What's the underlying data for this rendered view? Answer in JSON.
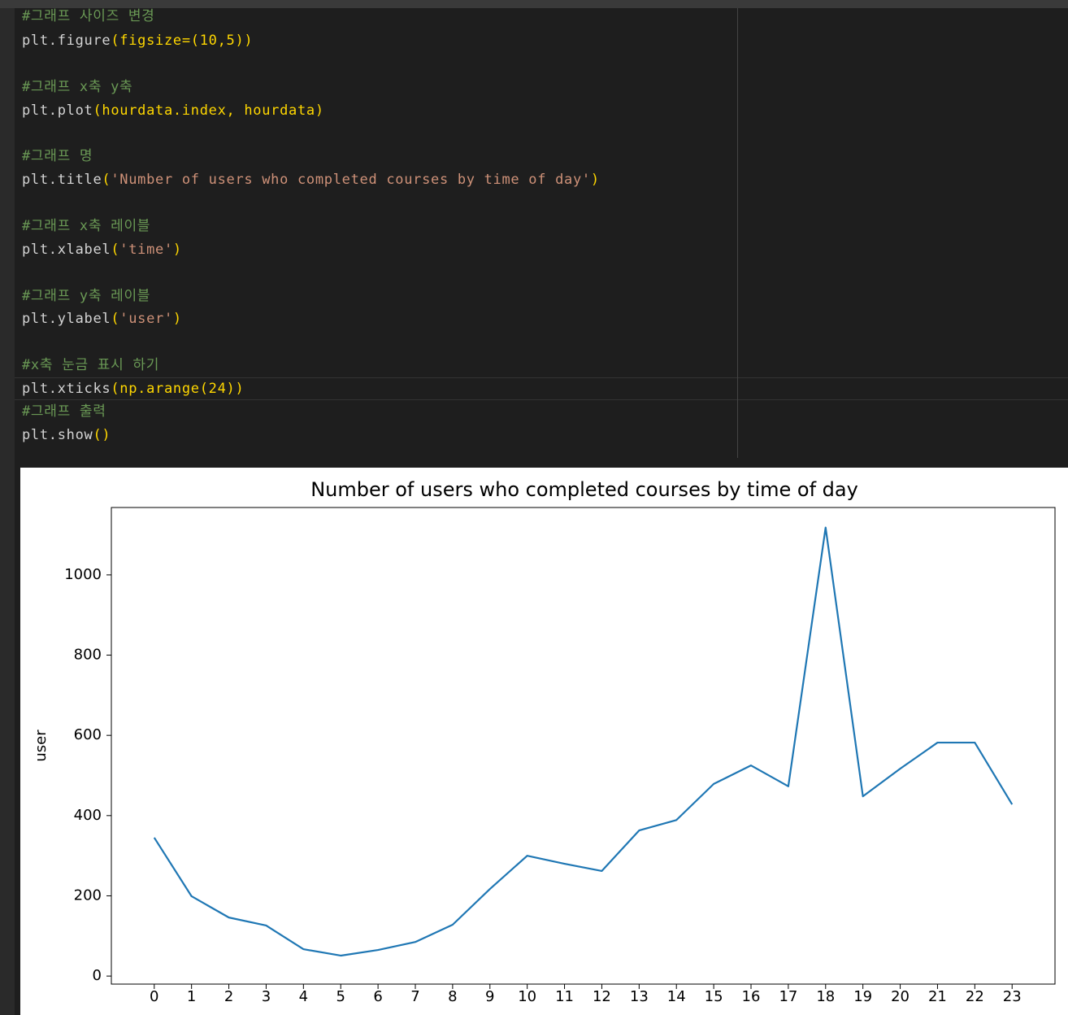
{
  "code": {
    "lines": [
      [
        "#그래프 사이즈 변경"
      ],
      [
        "plt.figure",
        "(figsize=(10,5))"
      ],
      [
        "#그래프 x축 y축"
      ],
      [
        "plt.plot",
        "(hourdata.index, hourdata)"
      ],
      [
        "#그래프 명"
      ],
      [
        "plt.title",
        "(",
        "'Number of users who completed courses by time of day'",
        ")"
      ],
      [
        "#그래프 x축 레이블"
      ],
      [
        "plt.xlabel",
        "(",
        "'time'",
        ")"
      ],
      [
        "#그래프 y축 레이블"
      ],
      [
        "plt.ylabel",
        "(",
        "'user'",
        ")"
      ],
      [
        "#x축 눈금 표시 하기"
      ],
      [
        "plt.xticks",
        "(np.arange(24))"
      ],
      [
        "#그래프 출력"
      ],
      [
        "plt.show",
        "()"
      ]
    ]
  },
  "chart_data": {
    "type": "line",
    "title": "Number of users who completed courses by time of day",
    "ylabel": "user",
    "color": "#1f77b4",
    "x": [
      0,
      1,
      2,
      3,
      4,
      5,
      6,
      7,
      8,
      9,
      10,
      11,
      12,
      13,
      14,
      15,
      16,
      17,
      18,
      19,
      20,
      21,
      22,
      23
    ],
    "values": [
      345,
      199,
      146,
      126,
      67,
      51,
      65,
      85,
      128,
      217,
      300,
      280,
      262,
      363,
      389,
      479,
      525,
      473,
      1118,
      448,
      517,
      582,
      582,
      428
    ],
    "xlim": [
      -1.15,
      24.15
    ],
    "xticks": [
      0,
      1,
      2,
      3,
      4,
      5,
      6,
      7,
      8,
      9,
      10,
      11,
      12,
      13,
      14,
      15,
      16,
      17,
      18,
      19,
      20,
      21,
      22,
      23
    ],
    "ylim": [
      -20,
      1168
    ],
    "yticks": [
      0,
      200,
      400,
      600,
      800,
      1000
    ]
  }
}
